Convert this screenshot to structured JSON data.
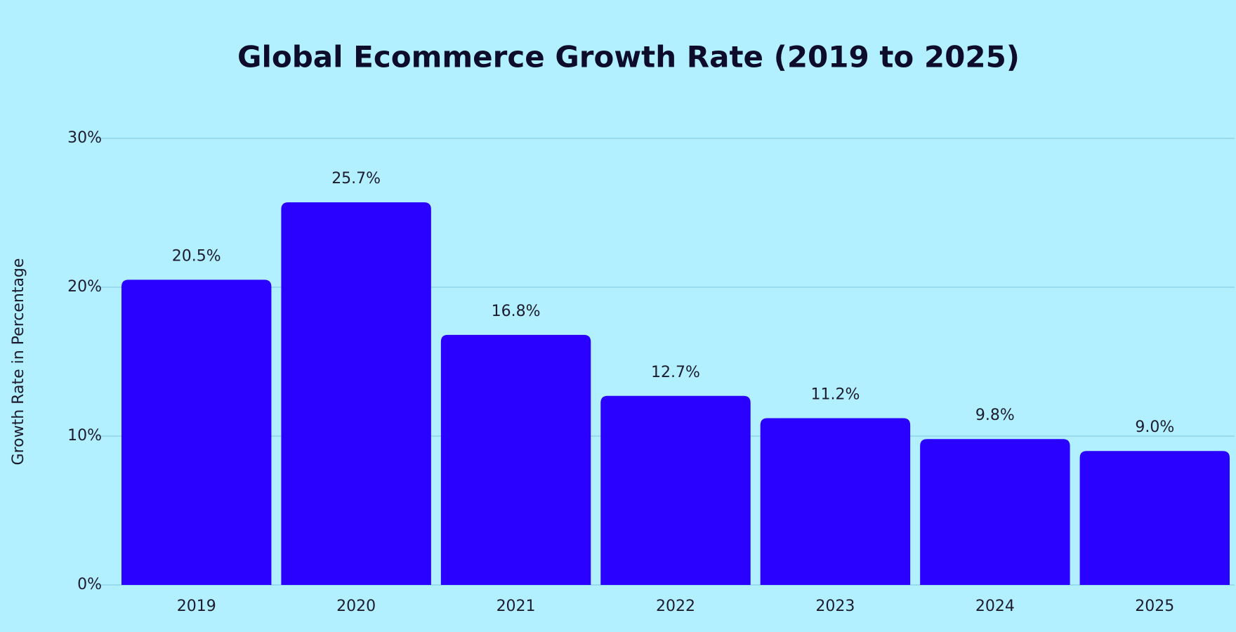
{
  "chart_data": {
    "type": "bar",
    "title": "Global Ecommerce Growth Rate (2019 to 2025)",
    "y_label": "Growth Rate in Percentage",
    "categories": [
      "2019",
      "2020",
      "2021",
      "2022",
      "2023",
      "2024",
      "2025"
    ],
    "values": [
      20.5,
      25.7,
      16.8,
      12.7,
      11.2,
      9.8,
      9.0
    ],
    "value_labels": [
      "20.5%",
      "25.7%",
      "16.8%",
      "12.7%",
      "11.2%",
      "9.8%",
      "9.0%"
    ],
    "color": "#2a00ff",
    "ylim": [
      0,
      30
    ],
    "yticks": [
      {
        "value": 0,
        "label": "0%"
      },
      {
        "value": 10,
        "label": "10%"
      },
      {
        "value": 20,
        "label": "20%"
      },
      {
        "value": 30,
        "label": "30%"
      }
    ],
    "grid": true
  }
}
